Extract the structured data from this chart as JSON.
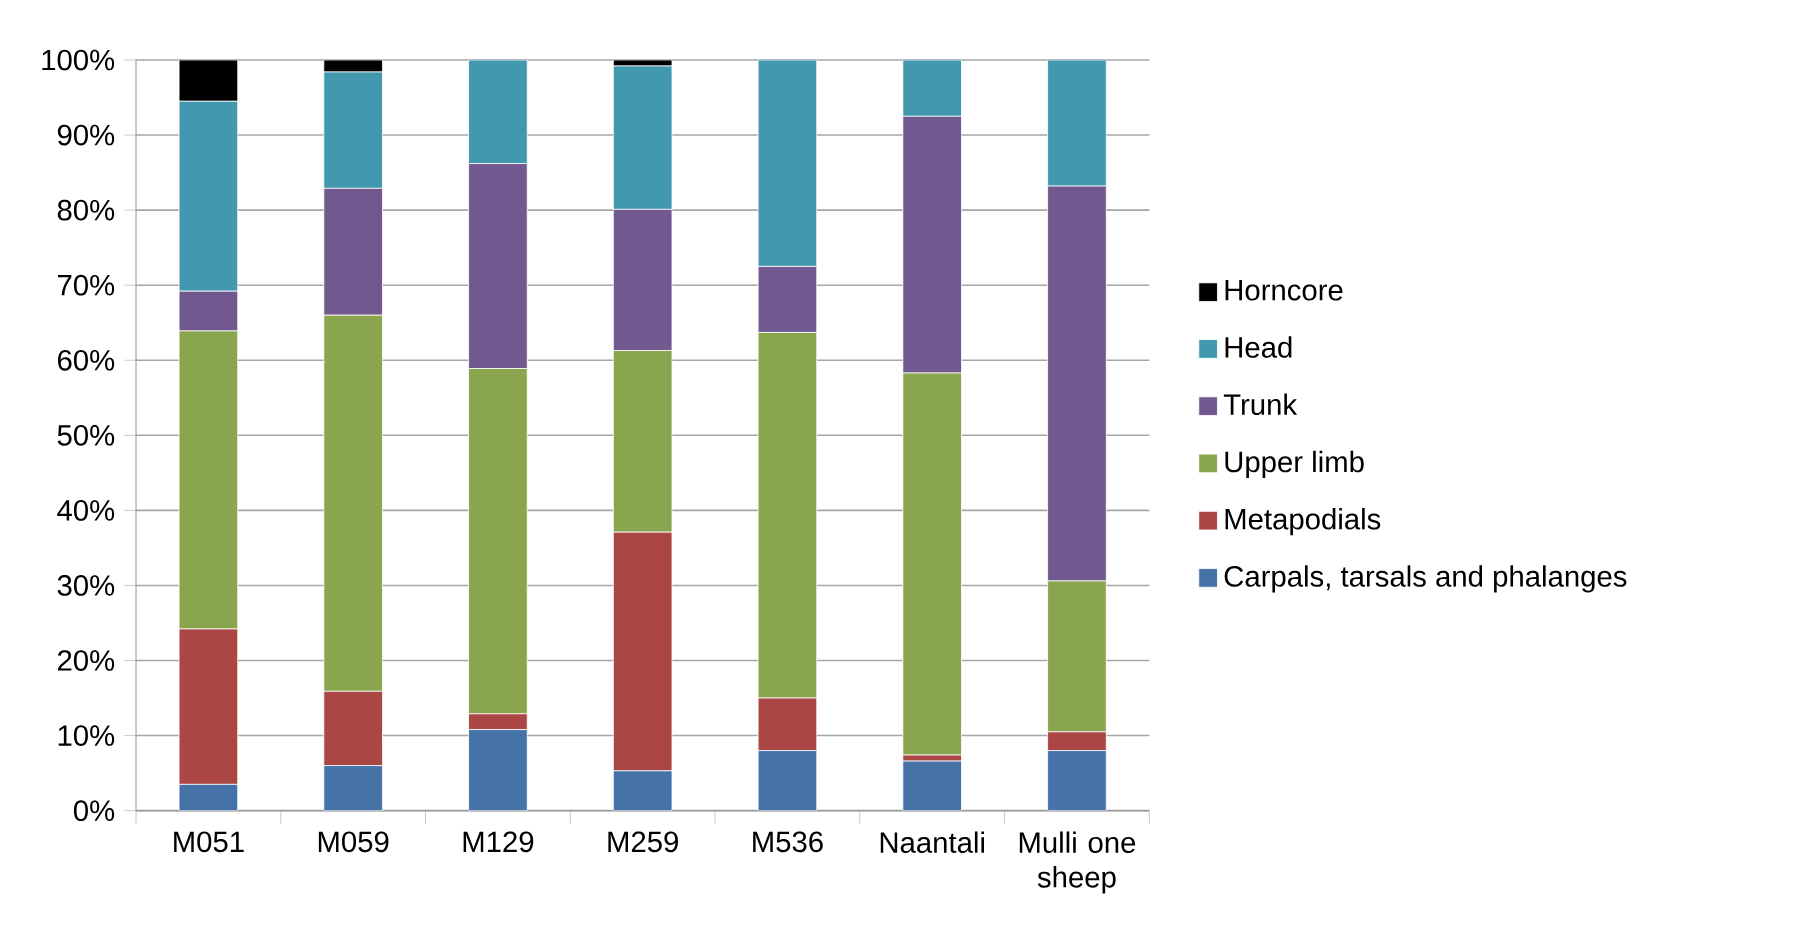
{
  "chart_data": {
    "type": "bar",
    "stacked": true,
    "categories": [
      "M051",
      "M059",
      "M129",
      "M259",
      "M536",
      "Naantali",
      "Mulli one sheep"
    ],
    "series": [
      {
        "name": "Carpals, tarsals and phalanges",
        "color": "#4572a7",
        "values": [
          3.5,
          6.0,
          10.8,
          5.3,
          8.0,
          6.6,
          8.0
        ]
      },
      {
        "name": "Metapodials",
        "color": "#aa4643",
        "values": [
          20.7,
          9.9,
          2.1,
          31.8,
          7.0,
          0.8,
          2.5
        ]
      },
      {
        "name": "Upper limb",
        "color": "#89a54e",
        "values": [
          39.7,
          50.1,
          46.0,
          24.2,
          48.7,
          50.9,
          20.1
        ]
      },
      {
        "name": "Trunk",
        "color": "#71588f",
        "values": [
          5.3,
          16.9,
          27.3,
          18.8,
          8.8,
          34.2,
          52.6
        ]
      },
      {
        "name": "Head",
        "color": "#4198af",
        "values": [
          25.3,
          15.5,
          13.8,
          19.1,
          27.5,
          7.5,
          16.8
        ]
      },
      {
        "name": "Horncore",
        "color": "#000000",
        "values": [
          5.5,
          1.6,
          0,
          0.8,
          0,
          0,
          0
        ]
      }
    ],
    "ylim": [
      0,
      100
    ],
    "yticks": [
      {
        "value": 0,
        "label": "0%"
      },
      {
        "value": 10,
        "label": "10%"
      },
      {
        "value": 20,
        "label": "20%"
      },
      {
        "value": 30,
        "label": "30%"
      },
      {
        "value": 40,
        "label": "40%"
      },
      {
        "value": 50,
        "label": "50%"
      },
      {
        "value": 60,
        "label": "60%"
      },
      {
        "value": 70,
        "label": "70%"
      },
      {
        "value": 80,
        "label": "80%"
      },
      {
        "value": 90,
        "label": "90%"
      },
      {
        "value": 100,
        "label": "100%"
      }
    ],
    "grid": "y",
    "legend": "right"
  }
}
